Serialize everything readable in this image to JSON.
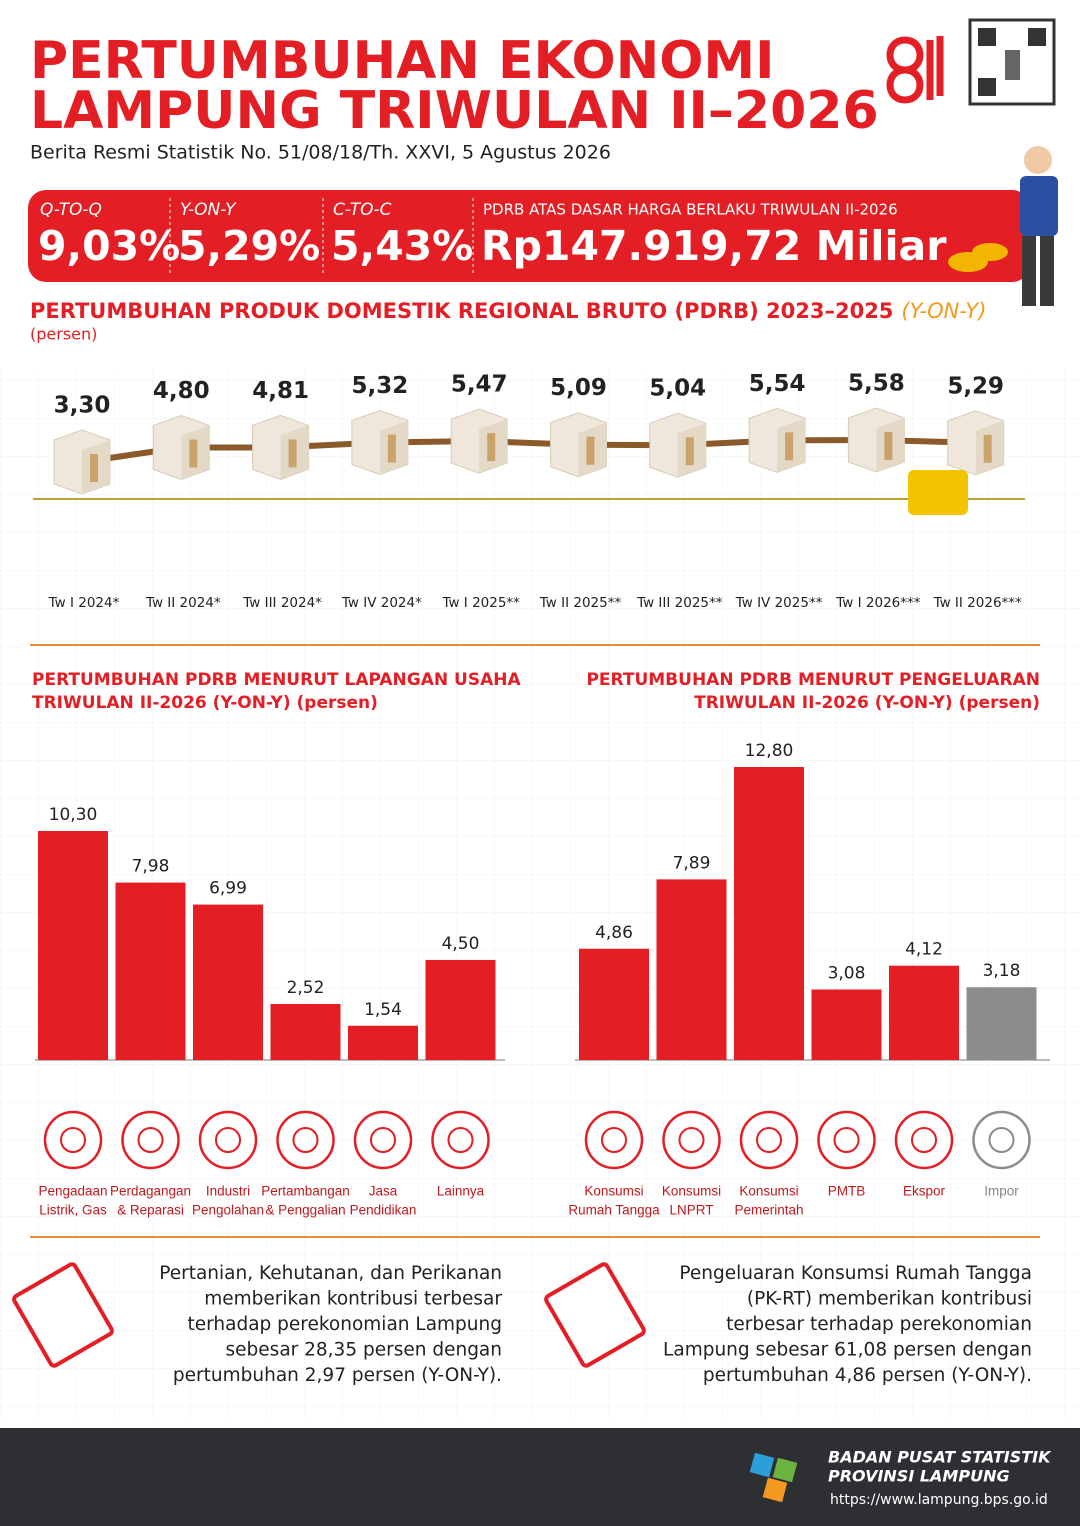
{
  "header": {
    "title_lines": [
      "PERTUMBUHAN EKONOMI",
      "LAMPUNG TRIWULAN II–2026"
    ],
    "subtitle": "Berita Resmi Statistik  No. 51/08/18/Th. XXVI, 5 Agustus 2026"
  },
  "kpis": [
    {
      "label": "Q-TO-Q",
      "value": "9,03%"
    },
    {
      "label": "Y-ON-Y",
      "value": "5,29%"
    },
    {
      "label": "C-TO-C",
      "value": "5,43%"
    },
    {
      "label": "PDRB ATAS DASAR HARGA BERLAKU TRIWULAN II-2026",
      "value": "Rp147.919,72 Miliar"
    }
  ],
  "chart_data": [
    {
      "type": "line",
      "title": "PERTUMBUHAN PRODUK DOMESTIK REGIONAL BRUTO (PDRB) 2023–2025",
      "title_note": "(Y-ON-Y)",
      "unit": "(persen)",
      "color": "#8b5a2b",
      "categories": [
        "Tw I 2024*",
        "Tw II 2024*",
        "Tw III 2024*",
        "Tw IV 2024*",
        "Tw I 2025**",
        "Tw II 2025**",
        "Tw III 2025**",
        "Tw IV 2025**",
        "Tw I 2026***",
        "Tw II 2026***"
      ],
      "values": [
        3.3,
        4.8,
        4.81,
        5.32,
        5.47,
        5.09,
        5.04,
        5.54,
        5.58,
        5.29
      ],
      "value_labels": [
        "3,30",
        "4,80",
        "4,81",
        "5,32",
        "5,47",
        "5,09",
        "5,04",
        "5,54",
        "5,58",
        "5,29"
      ]
    },
    {
      "type": "bar",
      "title_lines": [
        "PERTUMBUHAN PDRB MENURUT LAPANGAN USAHA",
        "TRIWULAN II-2026 (Y-ON-Y) (persen)"
      ],
      "categories": [
        [
          "Pengadaan",
          "Listrik, Gas"
        ],
        [
          "Perdagangan",
          "& Reparasi"
        ],
        [
          "Industri",
          "Pengolahan"
        ],
        [
          "Pertambangan",
          "& Penggalian"
        ],
        [
          "Jasa",
          "Pendidikan"
        ],
        [
          "Lainnya"
        ]
      ],
      "values": [
        10.3,
        7.98,
        6.99,
        2.52,
        1.54,
        4.5
      ],
      "value_labels": [
        "10,30",
        "7,98",
        "6,99",
        "2,52",
        "1,54",
        "4,50"
      ],
      "colors": [
        "#e31e24",
        "#e31e24",
        "#e31e24",
        "#e31e24",
        "#e31e24",
        "#e31e24"
      ]
    },
    {
      "type": "bar",
      "title_lines": [
        "PERTUMBUHAN PDRB MENURUT PENGELUARAN",
        "TRIWULAN II-2026 (Y-ON-Y) (persen)"
      ],
      "categories": [
        [
          "Konsumsi",
          "Rumah Tangga"
        ],
        [
          "Konsumsi",
          "LNPRT"
        ],
        [
          "Konsumsi",
          "Pemerintah"
        ],
        [
          "PMTB"
        ],
        [
          "Ekspor"
        ],
        [
          "Impor"
        ]
      ],
      "values": [
        4.86,
        7.89,
        12.8,
        3.08,
        4.12,
        3.18
      ],
      "value_labels": [
        "4,86",
        "7,89",
        "12,80",
        "3,08",
        "4,12",
        "3,18"
      ],
      "colors": [
        "#e31e24",
        "#e31e24",
        "#e31e24",
        "#e31e24",
        "#e31e24",
        "#8c8c8c"
      ]
    }
  ],
  "notes": [
    {
      "lines": [
        "Pertanian, Kehutanan, dan Perikanan",
        "memberikan kontribusi terbesar",
        "terhadap perekonomian Lampung",
        "sebesar 28,35 persen dengan",
        "pertumbuhan 2,97 persen (Y-ON-Y)."
      ]
    },
    {
      "lines": [
        "Pengeluaran Konsumsi Rumah Tangga",
        "(PK-RT) memberikan kontribusi",
        "terbesar terhadap perekonomian",
        "Lampung sebesar 61,08 persen dengan",
        "pertumbuhan 4,86 persen (Y-ON-Y)."
      ]
    }
  ],
  "footer": {
    "org_lines": [
      "BADAN PUSAT STATISTIK",
      "PROVINSI LAMPUNG"
    ],
    "url": "https://www.lampung.bps.go.id"
  }
}
